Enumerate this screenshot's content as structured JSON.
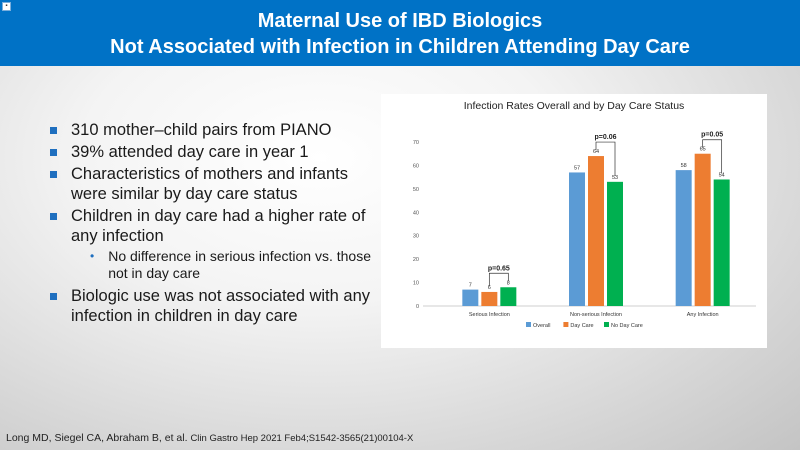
{
  "header": {
    "title_line1": "Maternal Use of IBD Biologics",
    "title_line2": "Not Associated with Infection in Children Attending Day Care",
    "corner_icon": "slide-icon"
  },
  "bullets": {
    "b1": "310 mother–child pairs from PIANO",
    "b2": "39% attended day care in year 1",
    "b3": "Characteristics of mothers and infants were similar by day care status",
    "b4": "Children in day care had a higher rate of any infection",
    "b4_sub": "No difference in serious infection vs. those not in day care",
    "b5": "Biologic use was not associated with any infection in children in day care"
  },
  "footnote": {
    "authors": "Long MD, Siegel CA, Abraham B, et al.",
    "journal": "Clin Gastro Hep 2021 Feb4;S1542-3565(21)00104-X"
  },
  "colors": {
    "overall": "#5b9bd5",
    "day_care": "#ed7d31",
    "no_day_care": "#00b050",
    "title_bar": "#0072c6"
  },
  "chart_data": {
    "type": "bar",
    "title": "Infection Rates Overall and by Day Care Status",
    "categories": [
      "Serious Infection",
      "Non-serious Infection",
      "Any Infection"
    ],
    "series": [
      {
        "name": "Overall",
        "values": [
          7,
          57,
          58
        ]
      },
      {
        "name": "Day Care",
        "values": [
          6,
          64,
          65
        ]
      },
      {
        "name": "No Day Care",
        "values": [
          8,
          53,
          54
        ]
      }
    ],
    "ylim": [
      0,
      70
    ],
    "yticks": [
      "0",
      "10",
      "20",
      "30",
      "40",
      "50",
      "60",
      "70"
    ],
    "annotations": [
      "p=0.65",
      "p=0.06",
      "p=0.05"
    ],
    "legend_position": "bottom"
  }
}
